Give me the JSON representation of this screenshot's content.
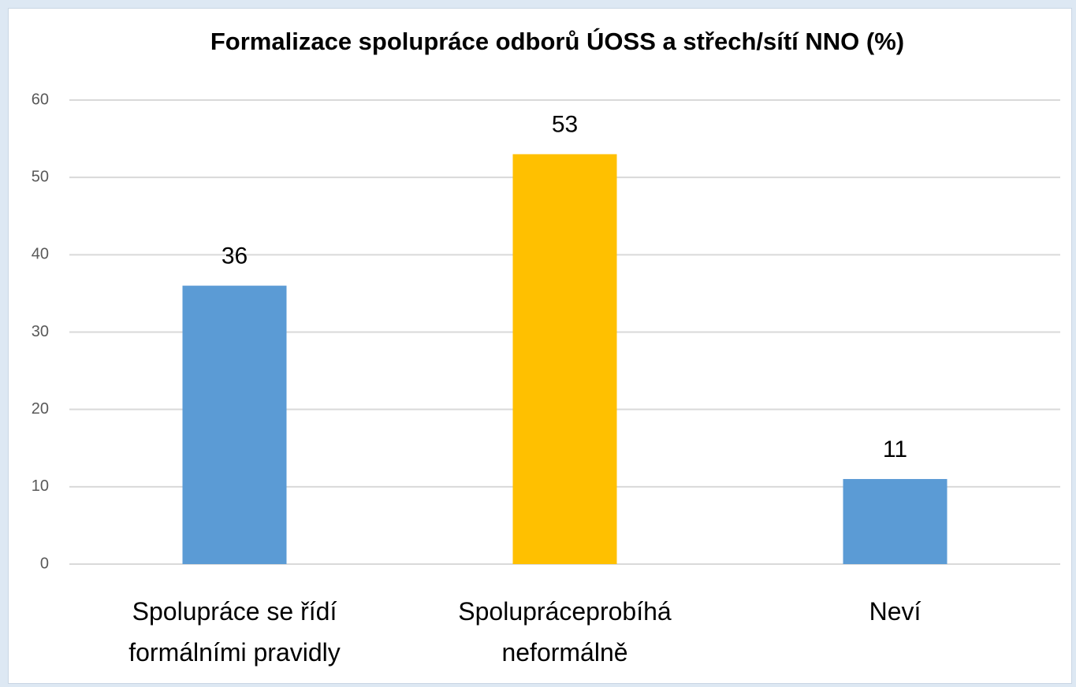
{
  "chart_data": {
    "type": "bar",
    "title": "Formalizace spolupráce odborů ÚOSS a střech/sítí NNO (%)",
    "categories": [
      "Spolupráce se řídí formálními pravidly",
      "Spolupráceprobíhá neformálně",
      "Neví"
    ],
    "values": [
      36,
      53,
      11
    ],
    "colors": [
      "#5b9bd5",
      "#ffc000",
      "#5b9bd5"
    ],
    "ylim": [
      0,
      60
    ],
    "yticks": [
      0,
      10,
      20,
      30,
      40,
      50,
      60
    ],
    "grid": true
  }
}
